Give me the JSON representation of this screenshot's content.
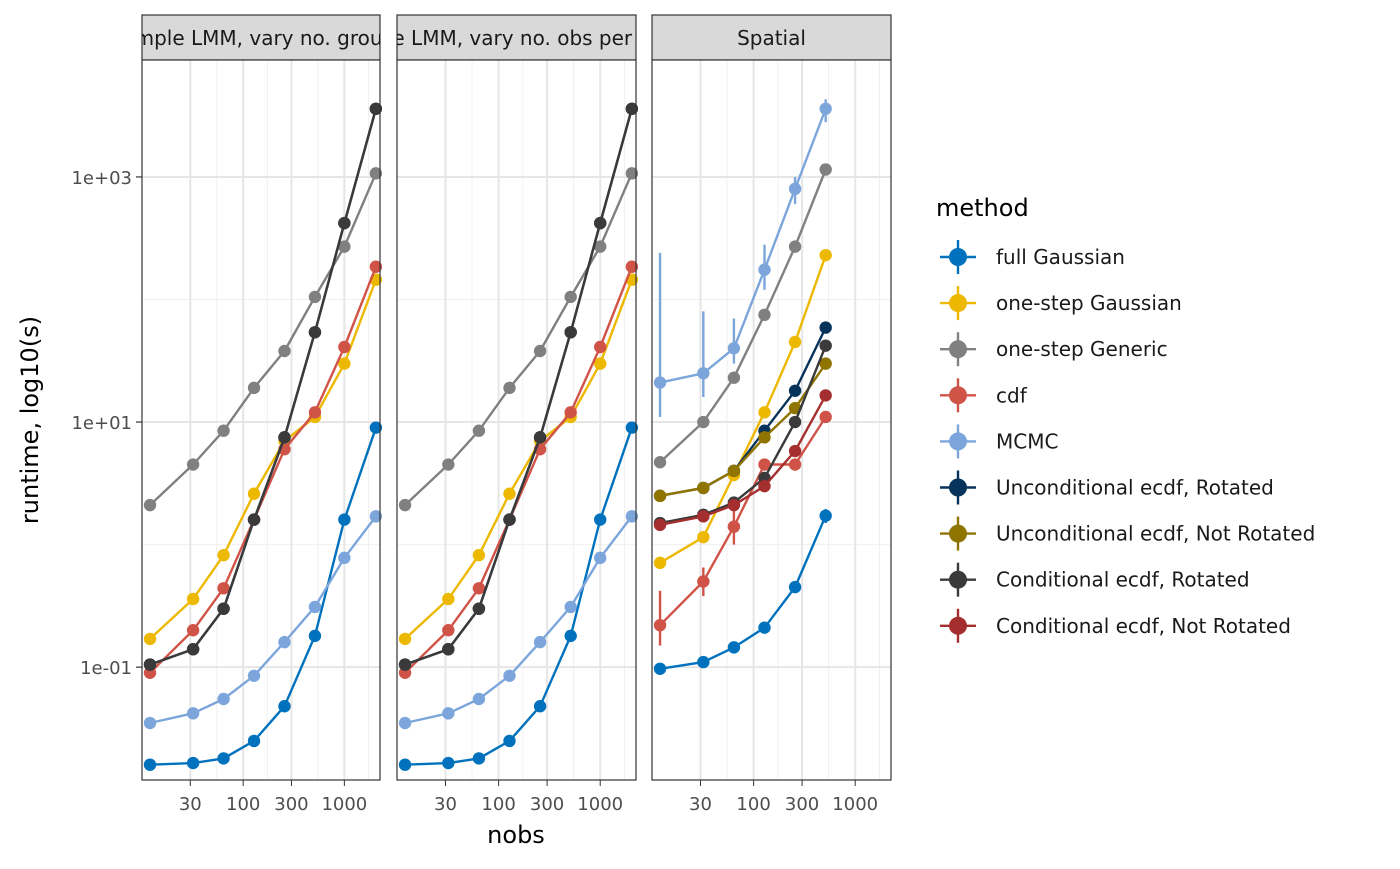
{
  "chart_data": {
    "type": "line",
    "y_axis_label": "runtime, log10(s)",
    "x_axis_label": "nobs",
    "x_scale": "log10",
    "y_scale": "log10",
    "x_range": [
      10,
      2250
    ],
    "y_range": [
      0.012,
      9000
    ],
    "x_ticks": [
      30,
      100,
      300,
      1000
    ],
    "x_tick_labels": [
      "30",
      "100",
      "300",
      "1000"
    ],
    "y_ticks": [
      0.1,
      10,
      1000
    ],
    "y_tick_labels": [
      "1e-01",
      "1e+01",
      "1e+03"
    ],
    "grid": true,
    "legend": {
      "title": "method",
      "position": "right",
      "entries": [
        {
          "name": "full Gaussian",
          "color": "#0072BD"
        },
        {
          "name": "one-step Gaussian",
          "color": "#EDB800"
        },
        {
          "name": "one-step Generic",
          "color": "#808080"
        },
        {
          "name": "cdf",
          "color": "#D05348"
        },
        {
          "name": "MCMC",
          "color": "#7CA6DB"
        },
        {
          "name": "Unconditional ecdf, Rotated",
          "color": "#06335A"
        },
        {
          "name": "Unconditional ecdf, Not Rotated",
          "color": "#907400"
        },
        {
          "name": "Conditional ecdf, Rotated",
          "color": "#3A3A3A"
        },
        {
          "name": "Conditional ecdf, Not Rotated",
          "color": "#A52E2E"
        }
      ]
    },
    "panels": [
      {
        "strip_label": "Simple LMM, vary no. groups",
        "x": [
          12,
          32,
          64,
          128,
          256,
          512,
          1000,
          2048
        ],
        "series": [
          {
            "name": "full Gaussian",
            "values": [
              0.016,
              0.0165,
              0.018,
              0.025,
              0.048,
              0.18,
              1.6,
              9.0
            ]
          },
          {
            "name": "one-step Gaussian",
            "values": [
              0.17,
              0.36,
              0.82,
              2.6,
              7.0,
              11.0,
              30.0,
              145.0
            ]
          },
          {
            "name": "one-step Generic",
            "values": [
              2.1,
              4.5,
              8.5,
              19.0,
              38.0,
              105.0,
              270.0,
              1070.0
            ]
          },
          {
            "name": "cdf",
            "values": [
              0.09,
              0.2,
              0.44,
              1.6,
              6.0,
              12.0,
              41.0,
              185.0
            ]
          },
          {
            "name": "MCMC",
            "values": [
              0.035,
              0.042,
              0.055,
              0.085,
              0.16,
              0.31,
              0.78,
              1.7
            ]
          },
          {
            "name": "Unconditional ecdf, Rotated",
            "values": [
              0.105,
              0.14,
              0.3,
              1.6,
              7.5,
              54.0,
              420.0,
              3600.0
            ]
          },
          {
            "name": "Conditional ecdf, Rotated",
            "values": [
              0.105,
              0.14,
              0.3,
              1.6,
              7.5,
              54.0,
              420.0,
              3600.0
            ]
          }
        ]
      },
      {
        "strip_label": "Simple LMM, vary no. obs per group",
        "x": [
          12,
          32,
          64,
          128,
          256,
          512,
          1000,
          2048
        ],
        "series": [
          {
            "name": "full Gaussian",
            "values": [
              0.016,
              0.0165,
              0.018,
              0.025,
              0.048,
              0.18,
              1.6,
              9.0
            ]
          },
          {
            "name": "one-step Gaussian",
            "values": [
              0.17,
              0.36,
              0.82,
              2.6,
              7.0,
              11.0,
              30.0,
              145.0
            ]
          },
          {
            "name": "one-step Generic",
            "values": [
              2.1,
              4.5,
              8.5,
              19.0,
              38.0,
              105.0,
              270.0,
              1070.0
            ]
          },
          {
            "name": "cdf",
            "values": [
              0.09,
              0.2,
              0.44,
              1.6,
              6.0,
              12.0,
              41.0,
              185.0
            ]
          },
          {
            "name": "MCMC",
            "values": [
              0.035,
              0.042,
              0.055,
              0.085,
              0.16,
              0.31,
              0.78,
              1.7
            ]
          },
          {
            "name": "Unconditional ecdf, Rotated",
            "values": [
              0.105,
              0.14,
              0.3,
              1.6,
              7.5,
              54.0,
              420.0,
              3600.0
            ]
          },
          {
            "name": "Conditional ecdf, Rotated",
            "values": [
              0.105,
              0.14,
              0.3,
              1.6,
              7.5,
              54.0,
              420.0,
              3600.0
            ]
          }
        ]
      },
      {
        "strip_label": "Spatial",
        "x": [
          12,
          32,
          64,
          128,
          256,
          512
        ],
        "series": [
          {
            "name": "full Gaussian",
            "values": [
              0.097,
              0.11,
              0.145,
              0.21,
              0.45,
              1.72
            ]
          },
          {
            "name": "one-step Gaussian",
            "values": [
              0.71,
              1.15,
              3.7,
              12.0,
              45.0,
              230.0
            ]
          },
          {
            "name": "one-step Generic",
            "values": [
              4.7,
              10.0,
              23.0,
              75.0,
              270.0,
              1150.0
            ]
          },
          {
            "name": "cdf",
            "values": [
              0.22,
              0.5,
              1.4,
              4.5,
              4.5,
              11.0
            ]
          },
          {
            "name": "MCMC",
            "values": [
              21.0,
              25.0,
              40.0,
              175.0,
              800.0,
              3600.0
            ]
          },
          {
            "name": "Unconditional ecdf, Rotated",
            "values": [
              2.5,
              2.9,
              4.0,
              8.5,
              18.0,
              59.0
            ]
          },
          {
            "name": "Unconditional ecdf, Not Rotated",
            "values": [
              2.5,
              2.9,
              4.0,
              7.5,
              13.0,
              30.0
            ]
          },
          {
            "name": "Conditional ecdf, Rotated",
            "values": [
              1.5,
              1.75,
              2.2,
              3.5,
              10.0,
              42.0
            ]
          },
          {
            "name": "Conditional ecdf, Not Rotated",
            "values": [
              1.45,
              1.7,
              2.1,
              3.0,
              5.8,
              16.5
            ]
          }
        ],
        "error_bars": [
          {
            "series": "MCMC",
            "x": 12,
            "low": 11.0,
            "high": 240.0
          },
          {
            "series": "MCMC",
            "x": 32,
            "low": 16.0,
            "high": 80.0
          },
          {
            "series": "MCMC",
            "x": 64,
            "low": 30.0,
            "high": 70.0
          },
          {
            "series": "MCMC",
            "x": 128,
            "low": 120.0,
            "high": 280.0
          },
          {
            "series": "MCMC",
            "x": 256,
            "low": 600.0,
            "high": 1000.0
          },
          {
            "series": "MCMC",
            "x": 512,
            "low": 2800.0,
            "high": 4300.0
          },
          {
            "series": "cdf",
            "x": 12,
            "low": 0.15,
            "high": 0.42
          },
          {
            "series": "cdf",
            "x": 32,
            "low": 0.38,
            "high": 0.65
          },
          {
            "series": "cdf",
            "x": 64,
            "low": 1.0,
            "high": 2.0
          },
          {
            "series": "full Gaussian",
            "x": 512,
            "low": 1.5,
            "high": 1.95
          }
        ]
      }
    ]
  }
}
